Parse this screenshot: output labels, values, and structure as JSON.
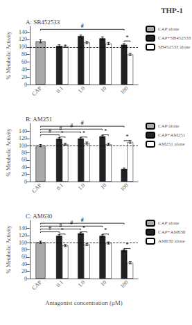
{
  "title": "THP-1",
  "chart_data": [
    {
      "type": "bar",
      "title": "A: SB452533",
      "categories": [
        "CAP",
        "0.1",
        "1.0",
        "10",
        "100"
      ],
      "ylabel": "% Metabolic Activity",
      "series": [
        {
          "name": "CAP alone",
          "color": "#aaaaaa",
          "values": [
            115,
            null,
            null,
            null,
            null
          ],
          "errors": [
            4,
            null,
            null,
            null,
            null
          ]
        },
        {
          "name": "CAP+SB452533",
          "color": "#222222",
          "values": [
            null,
            103,
            129,
            123,
            106
          ],
          "errors": [
            null,
            3,
            3,
            4,
            3
          ]
        },
        {
          "name": "SB452533 alone",
          "color": "#ffffff",
          "values": [
            null,
            102,
            112,
            109,
            80
          ],
          "errors": [
            null,
            3,
            3,
            3,
            3
          ]
        }
      ],
      "ylim": [
        0,
        155
      ],
      "yticks": [
        0,
        20,
        40,
        60,
        80,
        100,
        120,
        140
      ],
      "grid": false,
      "legend": "right",
      "reference_line": 100,
      "brackets": [
        {
          "label": "#",
          "from": "CAP",
          "to": "100",
          "y": 147
        }
      ],
      "pair_brackets": [
        {
          "label": "*",
          "category": "100",
          "y": 116
        }
      ]
    },
    {
      "type": "bar",
      "title": "B: AM251",
      "categories": [
        "CAP",
        "0.1",
        "1.0",
        "10",
        "100"
      ],
      "ylabel": "% Metabolic Activity",
      "series": [
        {
          "name": "CAP alone",
          "color": "#aaaaaa",
          "values": [
            100,
            null,
            null,
            null,
            null
          ],
          "errors": [
            3,
            null,
            null,
            null,
            null
          ]
        },
        {
          "name": "CAP+AM251",
          "color": "#222222",
          "values": [
            null,
            119,
            120,
            126,
            35
          ],
          "errors": [
            null,
            3,
            3,
            3,
            3
          ]
        },
        {
          "name": "AM251 alone",
          "color": "#ffffff",
          "values": [
            null,
            104,
            107,
            104,
            110
          ],
          "errors": [
            null,
            3,
            3,
            3,
            4
          ]
        }
      ],
      "ylim": [
        0,
        162
      ],
      "yticks": [
        0,
        20,
        40,
        60,
        80,
        100,
        120,
        140
      ],
      "grid": false,
      "legend": "right",
      "reference_line": 100,
      "brackets": [
        {
          "label": "#",
          "from": "CAP",
          "to": "0.1",
          "y": 130
        },
        {
          "label": "#",
          "from": "CAP",
          "to": "1.0",
          "y": 138
        },
        {
          "label": "#",
          "from": "CAP",
          "to": "10",
          "y": 146
        },
        {
          "label": "#",
          "from": "CAP",
          "to": "100",
          "y": 154
        }
      ],
      "pair_brackets": [
        {
          "label": "*",
          "category": "0.1",
          "y": 124
        },
        {
          "label": "*",
          "category": "1.0",
          "y": 124
        },
        {
          "label": "*",
          "category": "10",
          "y": 130
        },
        {
          "label": "*",
          "category": "100",
          "y": 114
        }
      ]
    },
    {
      "type": "bar",
      "title": "C: AM630",
      "categories": [
        "CAP",
        "0.1",
        "1.0",
        "10",
        "100"
      ],
      "xlabel": "Antagonist concentration (μM)",
      "ylabel": "% Metabolic Activity",
      "series": [
        {
          "name": "CAP alone",
          "color": "#aaaaaa",
          "values": [
            101,
            null,
            null,
            null,
            null
          ],
          "errors": [
            3,
            null,
            null,
            null,
            null
          ]
        },
        {
          "name": "CAP+AM630",
          "color": "#222222",
          "values": [
            null,
            119,
            126,
            119,
            79
          ],
          "errors": [
            null,
            3,
            3,
            3,
            3
          ]
        },
        {
          "name": "AM630 alone",
          "color": "#ffffff",
          "values": [
            null,
            92,
            95,
            99,
            44
          ],
          "errors": [
            null,
            3,
            3,
            3,
            3
          ]
        }
      ],
      "ylim": [
        0,
        162
      ],
      "yticks": [
        0,
        20,
        40,
        60,
        80,
        100,
        120,
        140
      ],
      "grid": false,
      "legend": "right",
      "reference_line": 100,
      "brackets": [
        {
          "label": "#",
          "from": "CAP",
          "to": "0.1",
          "y": 130
        },
        {
          "label": "#",
          "from": "CAP",
          "to": "1.0",
          "y": 138
        },
        {
          "label": "#",
          "from": "CAP",
          "to": "10",
          "y": 146
        },
        {
          "label": "#",
          "from": "CAP",
          "to": "100",
          "y": 154
        }
      ],
      "pair_brackets": [
        {
          "label": "*",
          "category": "0.1",
          "y": 124
        },
        {
          "label": "*",
          "category": "1.0",
          "y": 130
        },
        {
          "label": "*",
          "category": "10",
          "y": 124
        },
        {
          "label": "*",
          "category": "100",
          "y": 84
        }
      ]
    }
  ]
}
